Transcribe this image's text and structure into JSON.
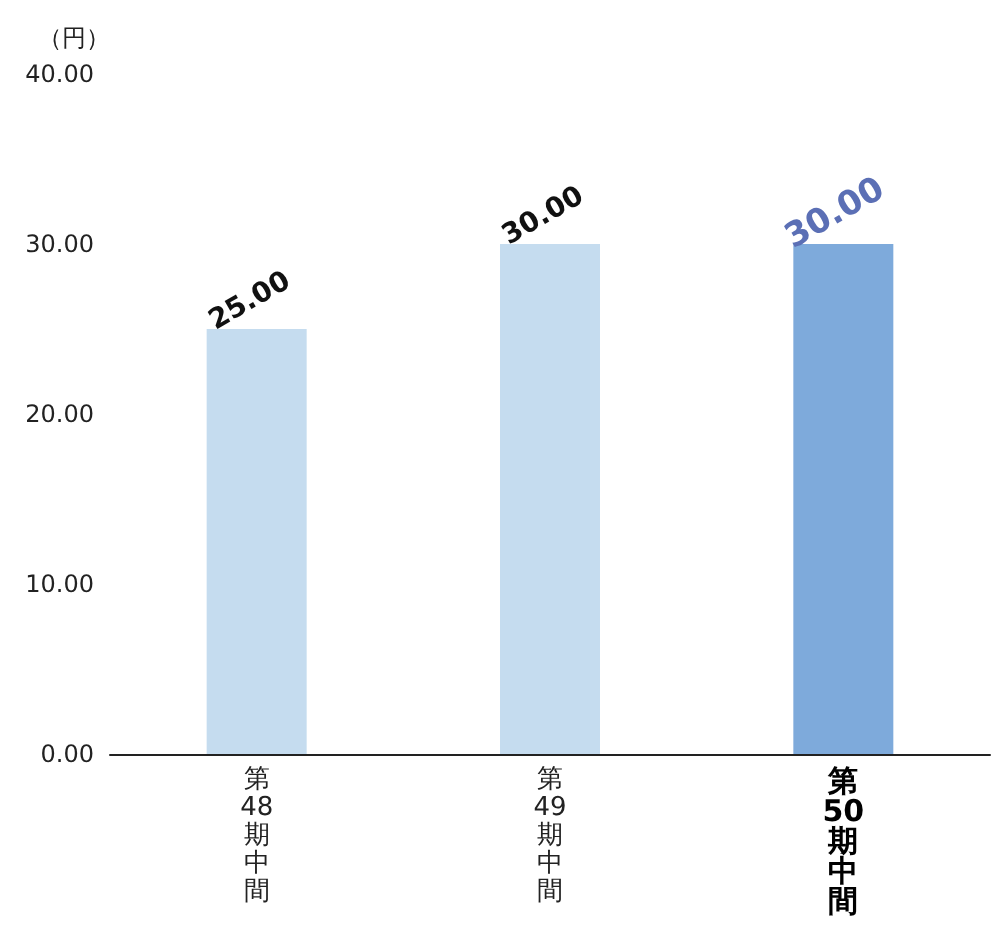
{
  "chart_data": {
    "type": "bar",
    "ylabel": "（円）",
    "categories": [
      "第48期中間",
      "第49期中間",
      "第50期中間"
    ],
    "values": [
      25,
      30,
      30
    ],
    "colors": [
      "#c5dcef",
      "#c5dcef",
      "#7eaadb"
    ],
    "value_labels": [
      "25.00",
      "30.00",
      "30.00"
    ],
    "ylim": [
      0,
      40
    ],
    "yticks": [
      {
        "value": 0,
        "label": "0.00"
      },
      {
        "value": 10,
        "label": "10.00"
      },
      {
        "value": 20,
        "label": "20.00"
      },
      {
        "value": 30,
        "label": "30.00"
      },
      {
        "value": 40,
        "label": "40.00"
      }
    ],
    "grid": false
  }
}
